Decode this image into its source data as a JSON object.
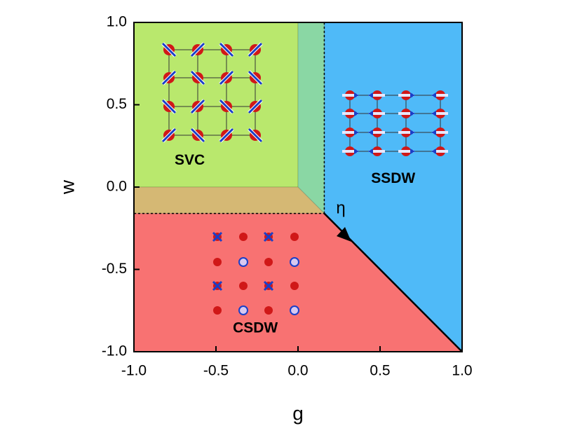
{
  "chart_data": {
    "type": "region",
    "x_label": "g",
    "y_label": "w",
    "xlim": [
      -1,
      1
    ],
    "ylim": [
      -1,
      1
    ],
    "xticks": [
      {
        "value": -1,
        "label": "-1.0"
      },
      -0.5,
      {
        "value": 0,
        "label": "0.0"
      },
      0.5,
      {
        "value": 1,
        "label": "1.0"
      }
    ],
    "yticks": [
      {
        "value": -1,
        "label": "-1.0"
      },
      -0.5,
      {
        "value": 0,
        "label": "0.0"
      },
      0.5,
      {
        "value": 1,
        "label": "1.0"
      }
    ],
    "regions": [
      {
        "name": "CSDW",
        "color": "#f87272",
        "x": [
          -1,
          0.16,
          1,
          -1
        ],
        "y": [
          -0.16,
          -0.16,
          -1,
          -1
        ]
      },
      {
        "name": "SSDW",
        "color": "#4fbaf8",
        "x": [
          0.16,
          1,
          1,
          0.16
        ],
        "y": [
          1,
          1,
          -1,
          -0.16
        ]
      },
      {
        "name": "SVC",
        "color": "#b9e86d",
        "x": [
          -1,
          0,
          0,
          -1
        ],
        "y": [
          1,
          1,
          0,
          0
        ]
      },
      {
        "color": "#8ad7a4",
        "x": [
          0,
          0.16,
          0.16,
          0
        ],
        "y": [
          1,
          1,
          -0.16,
          0
        ]
      },
      {
        "color": "#d5b874",
        "x": [
          -1,
          0,
          0.16,
          -1
        ],
        "y": [
          0,
          0,
          -0.16,
          -0.16
        ]
      }
    ],
    "lines": [
      {
        "style": "dashed",
        "x": [
          0.16,
          0.16
        ],
        "y": [
          1,
          -0.16
        ]
      },
      {
        "style": "dashed",
        "x": [
          -1,
          0.16
        ],
        "y": [
          -0.16,
          -0.16
        ]
      },
      {
        "style": "solid",
        "x": [
          0.16,
          1
        ],
        "y": [
          -0.16,
          -1
        ]
      }
    ],
    "annotations": [
      {
        "text": "η"
      }
    ]
  }
}
